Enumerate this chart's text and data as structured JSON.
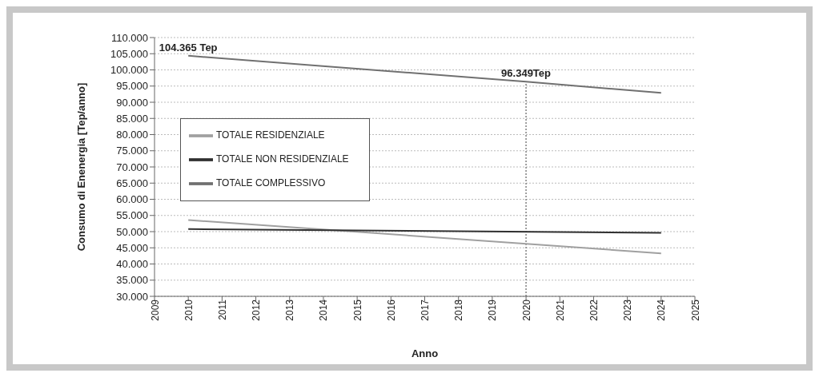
{
  "chart_data": {
    "type": "line",
    "xlabel": "Anno",
    "ylabel": "Consumo di Enenergia [Tep/anno]",
    "series": [
      {
        "name": "TOTALE RESIDENZIALE",
        "color": "#a0a0a0",
        "x": [
          2010,
          2024
        ],
        "values": [
          53600,
          43300
        ]
      },
      {
        "name": "TOTALE NON RESIDENZIALE",
        "color": "#303030",
        "x": [
          2010,
          2024
        ],
        "values": [
          50800,
          49600
        ]
      },
      {
        "name": "TOTALE COMPLESSIVO",
        "color": "#707070",
        "x": [
          2010,
          2020,
          2024
        ],
        "values": [
          104365,
          96349,
          92900
        ]
      }
    ],
    "xlim": [
      2009,
      2025
    ],
    "xticks": [
      2009,
      2010,
      2011,
      2012,
      2013,
      2014,
      2015,
      2016,
      2017,
      2018,
      2019,
      2020,
      2021,
      2022,
      2023,
      2024,
      2025
    ],
    "ylim": [
      30000,
      110000
    ],
    "yticks": [
      {
        "value": 30000,
        "label": "30.000"
      },
      {
        "value": 35000,
        "label": "35.000"
      },
      {
        "value": 40000,
        "label": "40.000"
      },
      {
        "value": 45000,
        "label": "45.000"
      },
      {
        "value": 50000,
        "label": "50.000"
      },
      {
        "value": 55000,
        "label": "55.000"
      },
      {
        "value": 60000,
        "label": "60.000"
      },
      {
        "value": 65000,
        "label": "65.000"
      },
      {
        "value": 70000,
        "label": "70.000"
      },
      {
        "value": 75000,
        "label": "75.000"
      },
      {
        "value": 80000,
        "label": "80.000"
      },
      {
        "value": 85000,
        "label": "85.000"
      },
      {
        "value": 90000,
        "label": "90.000"
      },
      {
        "value": 95000,
        "label": "95.000"
      },
      {
        "value": 100000,
        "label": "100.000"
      },
      {
        "value": 105000,
        "label": "105.000"
      },
      {
        "value": 110000,
        "label": "110.000"
      }
    ],
    "ref_lines": [
      {
        "axis": "x",
        "value": 2020,
        "color": "#808080",
        "line_style": "dotted"
      }
    ],
    "annotations": [
      {
        "text": "104.365 Tep",
        "x": 2010,
        "y": 104365
      },
      {
        "text": "96.349Tep",
        "x": 2020,
        "y": 96349
      }
    ],
    "grid": "y",
    "legend": "left",
    "marker": "none",
    "line_style": "solid"
  }
}
